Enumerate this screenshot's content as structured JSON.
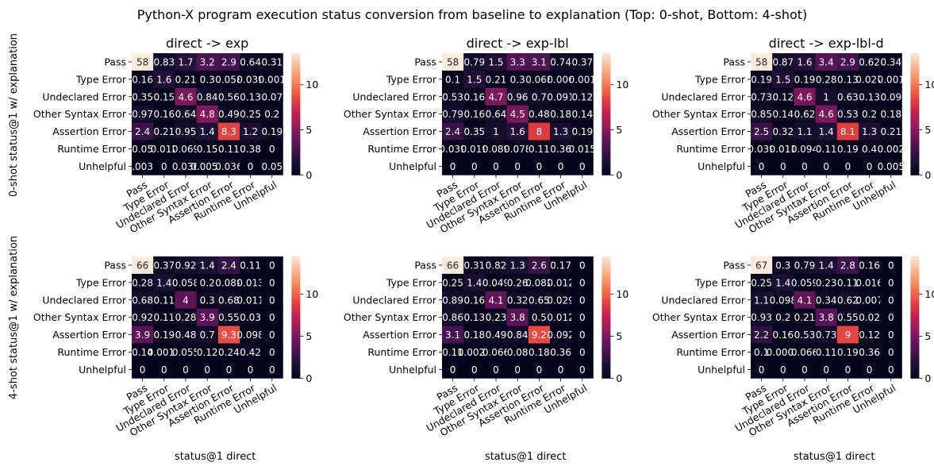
{
  "suptitle": "Python-X program execution status conversion from baseline to explanation (Top: 0-shot, Bottom: 4-shot)",
  "row_ylabels": [
    "0-shot status@1 w/ explanation",
    "4-shot status@1 w/ explanation"
  ],
  "xlabel": "status@1 direct",
  "colormap": "rocket",
  "chart_data": [
    {
      "type": "heatmap",
      "title": "direct -> exp",
      "xlabel": "",
      "categories": [
        "Pass",
        "Type Error",
        "Undeclared Error",
        "Other Syntax Error",
        "Assertion Error",
        "Runtime Error",
        "Unhelpful"
      ],
      "values": [
        [
          "58",
          "0.83",
          "1.7",
          "3.2",
          "2.9",
          "0.64",
          "0.31"
        ],
        [
          "0.16",
          "1.6",
          "0.21",
          "0.3",
          "0.058",
          "0.039",
          "0.001"
        ],
        [
          "0.35",
          "0.15",
          "4.6",
          "0.84",
          "0.56",
          "0.13",
          "0.07"
        ],
        [
          "0.97",
          "0.16",
          "0.64",
          "4.8",
          "0.49",
          "0.25",
          "0.2"
        ],
        [
          "2.4",
          "0.21",
          "0.95",
          "1.4",
          "8.3",
          "1.2",
          "0.19"
        ],
        [
          "0.05",
          "0.012",
          "0.069",
          "0.15",
          "0.11",
          "0.38",
          "0"
        ],
        [
          "0.0034",
          "0",
          "0.036",
          "0.0051",
          "0.036",
          "0",
          "0.05"
        ]
      ],
      "colorbar": {
        "vmin": 0,
        "vmax": 13.5,
        "ticks": [
          0,
          5,
          10
        ]
      }
    },
    {
      "type": "heatmap",
      "title": "direct -> exp-lbl",
      "xlabel": "",
      "categories": [
        "Pass",
        "Type Error",
        "Undeclared Error",
        "Other Syntax Error",
        "Assertion Error",
        "Runtime Error",
        "Unhelpful"
      ],
      "values": [
        [
          "58",
          "0.79",
          "1.5",
          "3.3",
          "3.1",
          "0.74",
          "0.37"
        ],
        [
          "0.1",
          "1.5",
          "0.21",
          "0.3",
          "0.068",
          "0.006",
          "0.001"
        ],
        [
          "0.53",
          "0.16",
          "4.7",
          "0.96",
          "0.7",
          "0.091",
          "0.12"
        ],
        [
          "0.79",
          "0.16",
          "0.64",
          "4.5",
          "0.48",
          "0.18",
          "0.14"
        ],
        [
          "2.4",
          "0.35",
          "1",
          "1.6",
          "8",
          "1.3",
          "0.19"
        ],
        [
          "0.039",
          "0.019",
          "0.089",
          "0.078",
          "0.11",
          "0.36",
          "0.015"
        ],
        [
          "0",
          "0",
          "0",
          "0",
          "0",
          "0",
          "0"
        ]
      ],
      "colorbar": {
        "vmin": 0,
        "vmax": 13.5,
        "ticks": [
          0,
          5,
          10
        ]
      }
    },
    {
      "type": "heatmap",
      "title": "direct -> exp-lbl-d",
      "xlabel": "",
      "categories": [
        "Pass",
        "Type Error",
        "Undeclared Error",
        "Other Syntax Error",
        "Assertion Error",
        "Runtime Error",
        "Unhelpful"
      ],
      "values": [
        [
          "58",
          "0.87",
          "1.6",
          "3.4",
          "2.9",
          "0.62",
          "0.34"
        ],
        [
          "0.19",
          "1.5",
          "0.19",
          "0.28",
          "0.13",
          "0.027",
          "0.001"
        ],
        [
          "0.73",
          "0.12",
          "4.6",
          "1",
          "0.63",
          "0.13",
          "0.09"
        ],
        [
          "0.85",
          "0.14",
          "0.62",
          "4.6",
          "0.53",
          "0.2",
          "0.18"
        ],
        [
          "2.5",
          "0.32",
          "1.1",
          "1.4",
          "8.1",
          "1.3",
          "0.21"
        ],
        [
          "0.039",
          "0.011",
          "0.094",
          "0.11",
          "0.19",
          "0.4",
          "0.002"
        ],
        [
          "0",
          "0",
          "0",
          "0",
          "0",
          "0",
          "0.005"
        ]
      ],
      "colorbar": {
        "vmin": 0,
        "vmax": 13.5,
        "ticks": [
          0,
          5,
          10
        ]
      }
    },
    {
      "type": "heatmap",
      "title": "",
      "xlabel": "status@1 direct",
      "categories": [
        "Pass",
        "Type Error",
        "Undeclared Error",
        "Other Syntax Error",
        "Assertion Error",
        "Runtime Error",
        "Unhelpful"
      ],
      "values": [
        [
          "66",
          "0.37",
          "0.92",
          "1.4",
          "2.4",
          "0.11",
          "0"
        ],
        [
          "0.28",
          "1.4",
          "0.058",
          "0.2",
          "0.089",
          "0.013",
          "0"
        ],
        [
          "0.68",
          "0.11",
          "4",
          "0.3",
          "0.68",
          "0.011",
          "0"
        ],
        [
          "0.92",
          "0.11",
          "0.28",
          "3.9",
          "0.55",
          "0.03",
          "0"
        ],
        [
          "3.9",
          "0.19",
          "0.48",
          "0.7",
          "9.3",
          "0.098",
          "0"
        ],
        [
          "0.14",
          "0.0017",
          "0.055",
          "0.12",
          "0.24",
          "0.42",
          "0"
        ],
        [
          "0",
          "0",
          "0",
          "0",
          "0",
          "0",
          "0"
        ]
      ],
      "colorbar": {
        "vmin": 0,
        "vmax": 14.5,
        "ticks": [
          0,
          5,
          10
        ]
      }
    },
    {
      "type": "heatmap",
      "title": "",
      "xlabel": "status@1 direct",
      "categories": [
        "Pass",
        "Type Error",
        "Undeclared Error",
        "Other Syntax Error",
        "Assertion Error",
        "Runtime Error",
        "Unhelpful"
      ],
      "values": [
        [
          "66",
          "0.31",
          "0.82",
          "1.3",
          "2.6",
          "0.17",
          "0"
        ],
        [
          "0.25",
          "1.4",
          "0.049",
          "0.26",
          "0.082",
          "0.012",
          "0"
        ],
        [
          "0.89",
          "0.16",
          "4.1",
          "0.32",
          "0.65",
          "0.029",
          "0"
        ],
        [
          "0.86",
          "0.13",
          "0.23",
          "3.8",
          "0.5",
          "0.012",
          "0"
        ],
        [
          "3.1",
          "0.18",
          "0.49",
          "0.84",
          "9.2",
          "0.092",
          "0"
        ],
        [
          "0.11",
          "0.0027",
          "0.066",
          "0.08",
          "0.18",
          "0.36",
          "0"
        ],
        [
          "0",
          "0",
          "0",
          "0",
          "0",
          "0",
          "0"
        ]
      ],
      "colorbar": {
        "vmin": 0,
        "vmax": 14.5,
        "ticks": [
          0,
          5,
          10
        ]
      }
    },
    {
      "type": "heatmap",
      "title": "",
      "xlabel": "status@1 direct",
      "categories": [
        "Pass",
        "Type Error",
        "Undeclared Error",
        "Other Syntax Error",
        "Assertion Error",
        "Runtime Error",
        "Unhelpful"
      ],
      "values": [
        [
          "67",
          "0.3",
          "0.79",
          "1.4",
          "2.8",
          "0.16",
          "0"
        ],
        [
          "0.25",
          "1.4",
          "0.059",
          "0.23",
          "0.11",
          "0.016",
          "0"
        ],
        [
          "1.1",
          "0.098",
          "4.1",
          "0.34",
          "0.62",
          "0.007",
          "0"
        ],
        [
          "0.93",
          "0.2",
          "0.21",
          "3.8",
          "0.55",
          "0.02",
          "0"
        ],
        [
          "2.2",
          "0.16",
          "0.53",
          "0.73",
          "9",
          "0.12",
          "0"
        ],
        [
          "0.1",
          "0.0003",
          "0.066",
          "0.11",
          "0.19",
          "0.36",
          "0"
        ],
        [
          "0",
          "0",
          "0",
          "0",
          "0",
          "0",
          "0"
        ]
      ],
      "colorbar": {
        "vmin": 0,
        "vmax": 14.5,
        "ticks": [
          0,
          5,
          10
        ]
      }
    }
  ]
}
